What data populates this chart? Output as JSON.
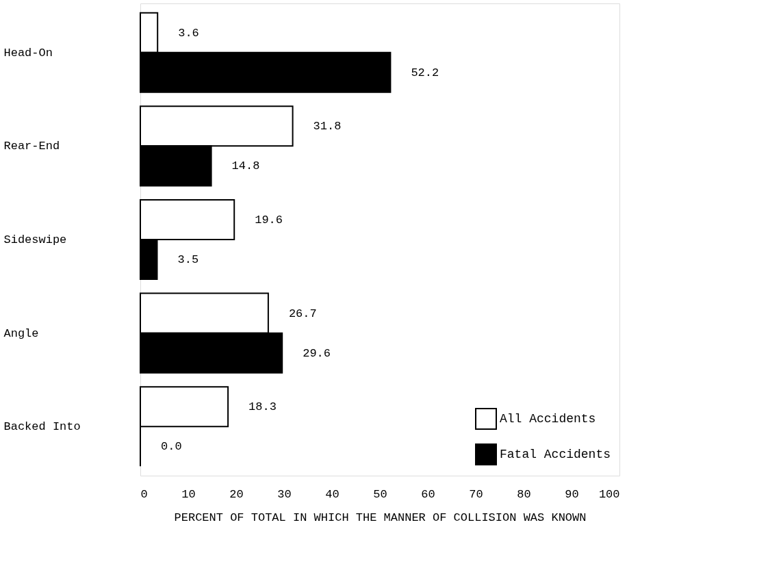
{
  "chart_data": {
    "type": "bar",
    "orientation": "horizontal",
    "xlabel": "PERCENT OF TOTAL IN WHICH THE MANNER OF COLLISION WAS KNOWN",
    "categories": [
      "Head-On",
      "Rear-End",
      "Sideswipe",
      "Angle",
      "Backed Into"
    ],
    "series": [
      {
        "name": "All Accidents",
        "color": "#ffffff",
        "values": [
          3.6,
          31.8,
          19.6,
          26.7,
          18.3
        ],
        "value_labels": [
          "3.6",
          "31.8",
          "19.6",
          "26.7",
          "18.3"
        ]
      },
      {
        "name": "Fatal Accidents",
        "color": "#000000",
        "values": [
          52.2,
          14.8,
          3.5,
          29.6,
          0.0
        ],
        "value_labels": [
          "52.2",
          "14.8",
          "3.5",
          "29.6",
          "0.0"
        ]
      }
    ],
    "xlim": [
      0,
      100
    ],
    "xticks": [
      0,
      10,
      20,
      30,
      40,
      50,
      60,
      70,
      80,
      90,
      100
    ],
    "grid": false,
    "legend": "bottom right"
  }
}
